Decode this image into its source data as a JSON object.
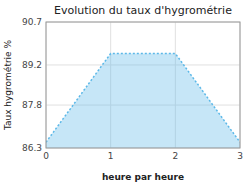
{
  "chart_data": {
    "type": "area",
    "title": "Evolution du taux d'hygrométrie",
    "xlabel": "heure par heure",
    "ylabel": "Taux hygrométrie %",
    "x": [
      0,
      1,
      2,
      3
    ],
    "values": [
      86.5,
      89.6,
      89.6,
      86.5
    ],
    "color": "#5bb8e8",
    "line_style": "dotted",
    "xlim": [
      0,
      3
    ],
    "ylim": [
      86.3,
      90.7
    ],
    "xticks": [
      0,
      1,
      2,
      3
    ],
    "yticks": [
      86.3,
      87.8,
      89.2,
      90.7
    ],
    "grid": true
  }
}
